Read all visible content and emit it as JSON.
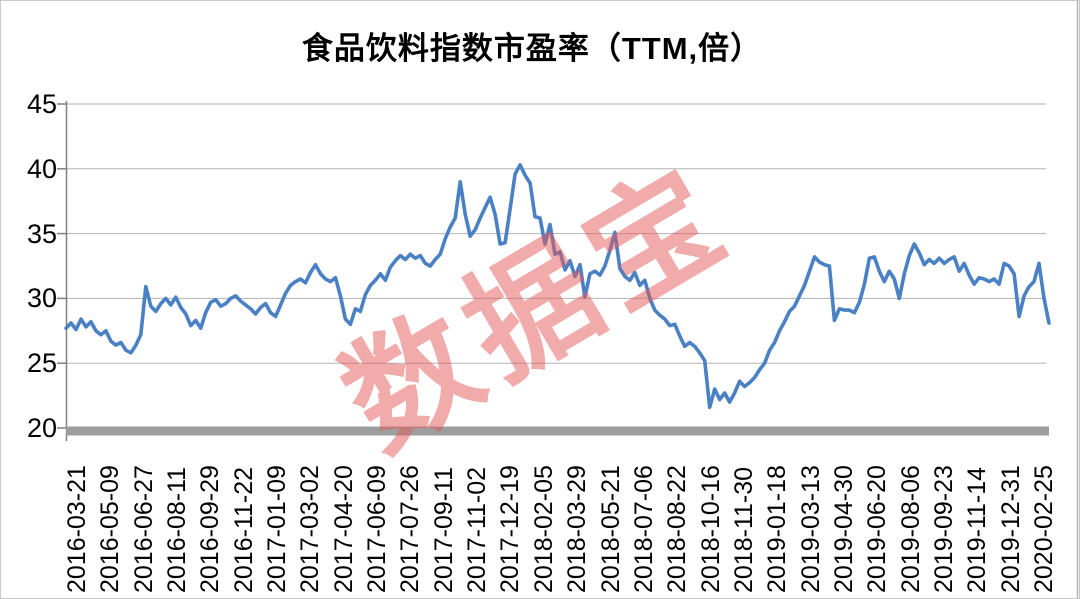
{
  "title": "食品饮料指数市盈率（TTM,倍）",
  "watermark": {
    "text": "数据宝",
    "color": "rgba(228,88,88,0.5)"
  },
  "colors": {
    "line": "#4a80c4",
    "gridline": "#b3b3b3",
    "axis": "#808080",
    "baseline_bar": "#9e9e9e",
    "right_border": "#b4b4b4",
    "label": "#000000"
  },
  "chart_data": {
    "type": "line",
    "title": "食品饮料指数市盈率（TTM,倍）",
    "series_name": "食品饮料指数市盈率(TTM)",
    "ylim": [
      20,
      45
    ],
    "yticks": [
      20,
      25,
      30,
      35,
      40,
      45
    ],
    "grid": true,
    "legend": "none",
    "x_labels": [
      "2016-03-21",
      "2016-05-09",
      "2016-06-27",
      "2016-08-11",
      "2016-09-29",
      "2016-11-22",
      "2017-01-09",
      "2017-03-02",
      "2017-04-20",
      "2017-06-09",
      "2017-07-26",
      "2017-09-11",
      "2017-11-02",
      "2017-12-19",
      "2018-02-05",
      "2018-03-29",
      "2018-05-21",
      "2018-07-06",
      "2018-08-22",
      "2018-10-16",
      "2018-11-30",
      "2019-01-18",
      "2019-03-13",
      "2019-04-30",
      "2019-06-20",
      "2019-08-06",
      "2019-09-23",
      "2019-11-14",
      "2019-12-31",
      "2020-02-25"
    ],
    "values": [
      27.7,
      28.1,
      27.6,
      28.4,
      27.8,
      28.2,
      27.5,
      27.2,
      27.5,
      26.7,
      26.4,
      26.6,
      26.0,
      25.8,
      26.4,
      27.2,
      30.9,
      29.4,
      29.0,
      29.6,
      30.0,
      29.5,
      30.1,
      29.3,
      28.8,
      27.9,
      28.3,
      27.7,
      28.9,
      29.7,
      29.9,
      29.4,
      29.6,
      30.0,
      30.2,
      29.8,
      29.5,
      29.2,
      28.8,
      29.3,
      29.6,
      28.9,
      28.6,
      29.5,
      30.4,
      31.0,
      31.3,
      31.5,
      31.2,
      32.0,
      32.6,
      31.9,
      31.5,
      31.3,
      31.6,
      30.2,
      28.4,
      28.0,
      29.2,
      29.0,
      30.3,
      31.0,
      31.4,
      31.9,
      31.4,
      32.4,
      32.9,
      33.3,
      33.0,
      33.4,
      33.1,
      33.3,
      32.7,
      32.5,
      33.0,
      33.4,
      34.6,
      35.5,
      36.2,
      39.0,
      36.5,
      34.8,
      35.3,
      36.2,
      37.0,
      37.8,
      36.5,
      34.2,
      34.3,
      36.9,
      39.6,
      40.3,
      39.5,
      38.9,
      36.3,
      36.2,
      34.2,
      35.7,
      33.4,
      33.6,
      32.2,
      32.9,
      31.7,
      32.6,
      30.1,
      31.9,
      32.1,
      31.8,
      32.5,
      33.7,
      35.1,
      32.3,
      31.7,
      31.4,
      32.0,
      31.0,
      31.4,
      30.0,
      29.1,
      28.7,
      28.4,
      27.9,
      28.0,
      27.1,
      26.3,
      26.6,
      26.3,
      25.8,
      25.2,
      21.6,
      23.0,
      22.2,
      22.7,
      22.0,
      22.7,
      23.6,
      23.2,
      23.5,
      23.9,
      24.5,
      25.0,
      26.0,
      26.6,
      27.5,
      28.2,
      29.0,
      29.4,
      30.2,
      31.0,
      32.1,
      33.2,
      32.8,
      32.6,
      32.5,
      28.3,
      29.2,
      29.1,
      29.1,
      28.9,
      29.7,
      31.1,
      33.1,
      33.2,
      32.1,
      31.3,
      32.1,
      31.5,
      30.0,
      31.9,
      33.3,
      34.2,
      33.5,
      32.6,
      33.0,
      32.7,
      33.1,
      32.7,
      33.0,
      33.2,
      32.1,
      32.7,
      31.8,
      31.1,
      31.6,
      31.5,
      31.3,
      31.5,
      31.1,
      32.7,
      32.5,
      31.9,
      28.6,
      30.2,
      30.9,
      31.3,
      32.7,
      30.0,
      28.1
    ]
  }
}
